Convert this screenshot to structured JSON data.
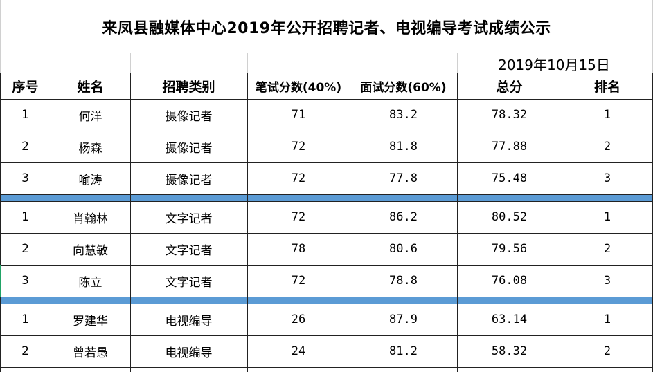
{
  "title": "来凤县融媒体中心2019年公开招聘记者、电视编导考试成绩公示",
  "date": "2019年10月15日",
  "headers": [
    "序号",
    "姓名",
    "招聘类别",
    "笔试分数(40%)",
    "面试分数(60%)",
    "总分",
    "排名"
  ],
  "groups": [
    {
      "rows": [
        [
          "1",
          "何洋",
          "摄像记者",
          "71",
          "83.2",
          "78.32",
          "1"
        ],
        [
          "2",
          "杨森",
          "摄像记者",
          "72",
          "81.8",
          "77.88",
          "2"
        ],
        [
          "3",
          "喻涛",
          "摄像记者",
          "72",
          "77.8",
          "75.48",
          "3"
        ]
      ]
    },
    {
      "rows": [
        [
          "1",
          "肖翰林",
          "文字记者",
          "72",
          "86.2",
          "80.52",
          "1"
        ],
        [
          "2",
          "向慧敏",
          "文字记者",
          "78",
          "80.6",
          "79.56",
          "2"
        ],
        [
          "3",
          "陈立",
          "文字记者",
          "72",
          "78.8",
          "76.08",
          "3"
        ]
      ]
    },
    {
      "rows": [
        [
          "1",
          "罗建华",
          "电视编导",
          "26",
          "87.9",
          "63.14",
          "1"
        ],
        [
          "2",
          "曾若愚",
          "电视编导",
          "24",
          "81.2",
          "58.32",
          "2"
        ]
      ]
    }
  ],
  "colors": {
    "separator": "#5b9bd5",
    "grid": "#222222",
    "selection": "#21a366"
  }
}
